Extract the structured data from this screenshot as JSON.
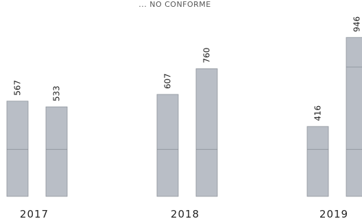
{
  "chart_data": {
    "type": "bar",
    "title": "... NO CONFORME",
    "categories": [
      "2017",
      "2018",
      "2019"
    ],
    "series": [
      {
        "values": [
          567,
          607,
          416
        ]
      },
      {
        "values": [
          533,
          760,
          946
        ]
      }
    ],
    "ylim": [
      0,
      1000
    ],
    "grid": false,
    "legend": "none",
    "colors": {
      "bar_fill": "#b9bec6",
      "bar_edge": "#8e949c",
      "line": "#5f656d"
    }
  }
}
